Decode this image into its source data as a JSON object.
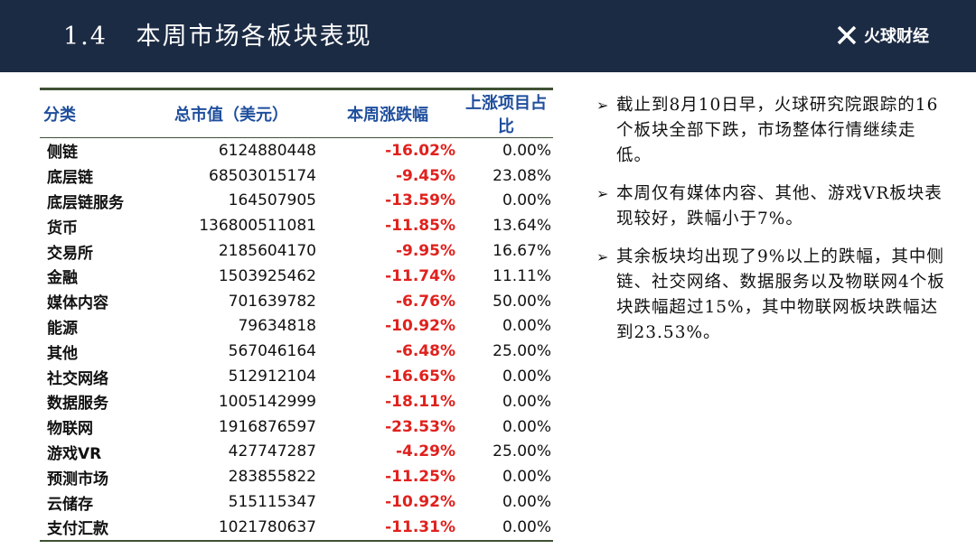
{
  "header": {
    "title": "1.4   本周市场各板块表现",
    "brand": "火球财经"
  },
  "table": {
    "columns": [
      "分类",
      "总市值（美元）",
      "本周涨跌幅",
      "上涨项目占比"
    ],
    "rows": [
      {
        "category": "侧链",
        "market_cap": "6124880448",
        "weekly_change": "-16.02%",
        "rising_ratio": "0.00%"
      },
      {
        "category": "底层链",
        "market_cap": "68503015174",
        "weekly_change": "-9.45%",
        "rising_ratio": "23.08%"
      },
      {
        "category": "底层链服务",
        "market_cap": "164507905",
        "weekly_change": "-13.59%",
        "rising_ratio": "0.00%"
      },
      {
        "category": "货币",
        "market_cap": "136800511081",
        "weekly_change": "-11.85%",
        "rising_ratio": "13.64%"
      },
      {
        "category": "交易所",
        "market_cap": "2185604170",
        "weekly_change": "-9.95%",
        "rising_ratio": "16.67%"
      },
      {
        "category": "金融",
        "market_cap": "1503925462",
        "weekly_change": "-11.74%",
        "rising_ratio": "11.11%"
      },
      {
        "category": "媒体内容",
        "market_cap": "701639782",
        "weekly_change": "-6.76%",
        "rising_ratio": "50.00%"
      },
      {
        "category": "能源",
        "market_cap": "79634818",
        "weekly_change": "-10.92%",
        "rising_ratio": "0.00%"
      },
      {
        "category": "其他",
        "market_cap": "567046164",
        "weekly_change": "-6.48%",
        "rising_ratio": "25.00%"
      },
      {
        "category": "社交网络",
        "market_cap": "512912104",
        "weekly_change": "-16.65%",
        "rising_ratio": "0.00%"
      },
      {
        "category": "数据服务",
        "market_cap": "1005142999",
        "weekly_change": "-18.11%",
        "rising_ratio": "0.00%"
      },
      {
        "category": "物联网",
        "market_cap": "1916876597",
        "weekly_change": "-23.53%",
        "rising_ratio": "0.00%"
      },
      {
        "category": "游戏VR",
        "market_cap": "427747287",
        "weekly_change": "-4.29%",
        "rising_ratio": "25.00%"
      },
      {
        "category": "预测市场",
        "market_cap": "283855822",
        "weekly_change": "-11.25%",
        "rising_ratio": "0.00%"
      },
      {
        "category": "云储存",
        "market_cap": "515115347",
        "weekly_change": "-10.92%",
        "rising_ratio": "0.00%"
      },
      {
        "category": "支付汇款",
        "market_cap": "1021780637",
        "weekly_change": "-11.31%",
        "rising_ratio": "0.00%"
      }
    ]
  },
  "notes": [
    "截止到8月10日早，火球研究院跟踪的16个板块全部下跌，市场整体行情继续走低。",
    "本周仅有媒体内容、其他、游戏VR板块表现较好，跌幅小于7%。",
    "其余板块均出现了9%以上的跌幅，其中侧链、社交网络、数据服务以及物联网4个板块跌幅超过15%，其中物联网板块跌幅达到23.53%。"
  ],
  "colors": {
    "header_bg": "#1c2b44",
    "table_header_text": "#1f4e9c",
    "negative": "#e0211d",
    "rule": "#3f5134"
  },
  "icons": {
    "logo": "fireball-logo-icon",
    "bullet": "arrow-bullet-icon"
  }
}
